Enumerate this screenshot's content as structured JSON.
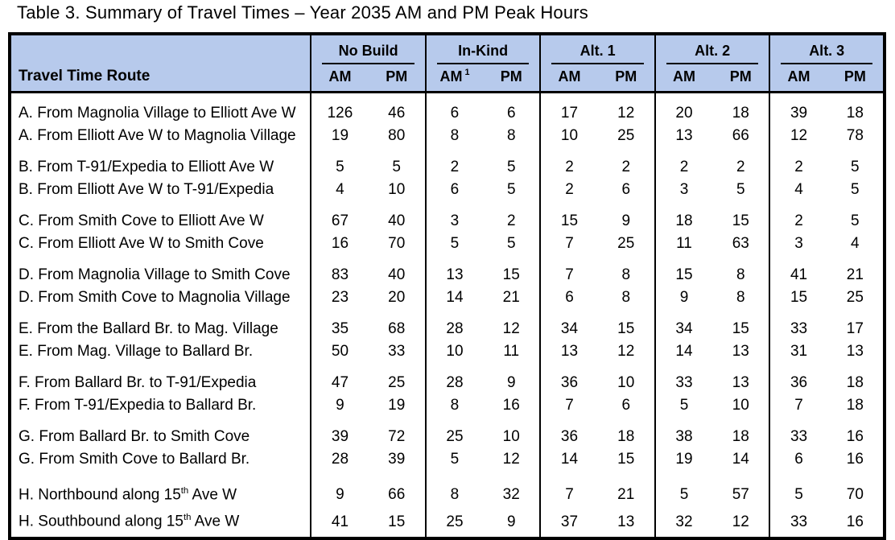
{
  "title": "Table 3. Summary of Travel Times – Year 2035 AM and PM Peak Hours",
  "table": {
    "route_header": "Travel Time Route",
    "groups": [
      {
        "label": "No Build",
        "am": "AM",
        "am_sup": "",
        "pm": "PM"
      },
      {
        "label": "In-Kind",
        "am": "AM",
        "am_sup": "1",
        "pm": "PM"
      },
      {
        "label": "Alt. 1",
        "am": "AM",
        "am_sup": "",
        "pm": "PM"
      },
      {
        "label": "Alt. 2",
        "am": "AM",
        "am_sup": "",
        "pm": "PM"
      },
      {
        "label": "Alt. 3",
        "am": "AM",
        "am_sup": "",
        "pm": "PM"
      }
    ],
    "row_groups": [
      {
        "rows": [
          {
            "route": "A. From Magnolia Village to Elliott Ave W",
            "values": [
              126,
              46,
              6,
              6,
              17,
              12,
              20,
              18,
              39,
              18
            ]
          },
          {
            "route": "A. From Elliott Ave W to Magnolia Village",
            "values": [
              19,
              80,
              8,
              8,
              10,
              25,
              13,
              66,
              12,
              78
            ]
          }
        ]
      },
      {
        "rows": [
          {
            "route": "B. From T-91/Expedia to Elliott Ave W",
            "values": [
              5,
              5,
              2,
              5,
              2,
              2,
              2,
              2,
              2,
              5
            ]
          },
          {
            "route": "B. From Elliott Ave W to T-91/Expedia",
            "values": [
              4,
              10,
              6,
              5,
              2,
              6,
              3,
              5,
              4,
              5
            ]
          }
        ]
      },
      {
        "rows": [
          {
            "route": "C. From Smith Cove to Elliott Ave W",
            "values": [
              67,
              40,
              3,
              2,
              15,
              9,
              18,
              15,
              2,
              5
            ]
          },
          {
            "route": "C. From Elliott Ave W to Smith Cove",
            "values": [
              16,
              70,
              5,
              5,
              7,
              25,
              11,
              63,
              3,
              4
            ]
          }
        ]
      },
      {
        "rows": [
          {
            "route": "D. From Magnolia Village to Smith Cove",
            "values": [
              83,
              40,
              13,
              15,
              7,
              8,
              15,
              8,
              41,
              21
            ]
          },
          {
            "route": "D. From Smith Cove to Magnolia Village",
            "values": [
              23,
              20,
              14,
              21,
              6,
              8,
              9,
              8,
              15,
              25
            ]
          }
        ]
      },
      {
        "rows": [
          {
            "route": "E. From the Ballard Br. to Mag. Village",
            "values": [
              35,
              68,
              28,
              12,
              34,
              15,
              34,
              15,
              33,
              17
            ]
          },
          {
            "route": "E. From Mag. Village to Ballard Br.",
            "values": [
              50,
              33,
              10,
              11,
              13,
              12,
              14,
              13,
              31,
              13
            ]
          }
        ]
      },
      {
        "rows": [
          {
            "route": "F. From Ballard Br. to T-91/Expedia",
            "values": [
              47,
              25,
              28,
              9,
              36,
              10,
              33,
              13,
              36,
              18
            ]
          },
          {
            "route": "F. From T-91/Expedia to Ballard Br.",
            "values": [
              9,
              19,
              8,
              16,
              7,
              6,
              5,
              10,
              7,
              18
            ]
          }
        ]
      },
      {
        "rows": [
          {
            "route": "G. From Ballard Br. to Smith Cove",
            "values": [
              39,
              72,
              25,
              10,
              36,
              18,
              38,
              18,
              33,
              16
            ]
          },
          {
            "route": "G. From Smith Cove to Ballard Br.",
            "values": [
              28,
              39,
              5,
              12,
              14,
              15,
              19,
              14,
              6,
              16
            ]
          }
        ]
      },
      {
        "rows": [
          {
            "route": "H. Northbound along 15th Ave W",
            "values": [
              9,
              66,
              8,
              32,
              7,
              21,
              5,
              57,
              5,
              70
            ]
          },
          {
            "route": "H. Southbound along 15th Ave W",
            "values": [
              41,
              15,
              25,
              9,
              37,
              13,
              32,
              12,
              33,
              16
            ]
          }
        ]
      }
    ]
  },
  "colors": {
    "header_bg": "#b7caec",
    "border": "#000000",
    "text": "#000000",
    "page_bg": "#ffffff"
  }
}
